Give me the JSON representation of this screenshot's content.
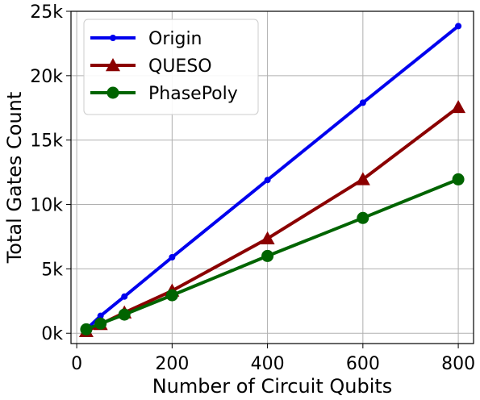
{
  "chart_data": {
    "type": "line",
    "xlabel": "Number of Circuit Qubits",
    "ylabel": "Total Gates Count",
    "xlim": [
      -12,
      832
    ],
    "ylim": [
      -800,
      25000
    ],
    "xticks": [
      0,
      200,
      400,
      600,
      800
    ],
    "xtick_labels": [
      "0",
      "200",
      "400",
      "600",
      "800"
    ],
    "yticks": [
      0,
      5000,
      10000,
      15000,
      20000,
      25000
    ],
    "ytick_labels": [
      "0k",
      "5k",
      "10k",
      "15k",
      "20k",
      "25k"
    ],
    "grid": true,
    "legend_position": "top-left",
    "x": [
      20,
      50,
      100,
      200,
      400,
      600,
      800
    ],
    "series": [
      {
        "name": "Origin",
        "color": "#0000ee",
        "marker": "dot",
        "values": [
          300,
          1350,
          2850,
          5900,
          11900,
          17900,
          23850
        ]
      },
      {
        "name": "QUESO",
        "color": "#8b0000",
        "marker": "triangle",
        "values": [
          150,
          700,
          1600,
          3300,
          7350,
          11950,
          17550
        ]
      },
      {
        "name": "PhasePoly",
        "color": "#006400",
        "marker": "circle",
        "values": [
          300,
          750,
          1450,
          2950,
          6000,
          8950,
          11950
        ]
      }
    ]
  }
}
